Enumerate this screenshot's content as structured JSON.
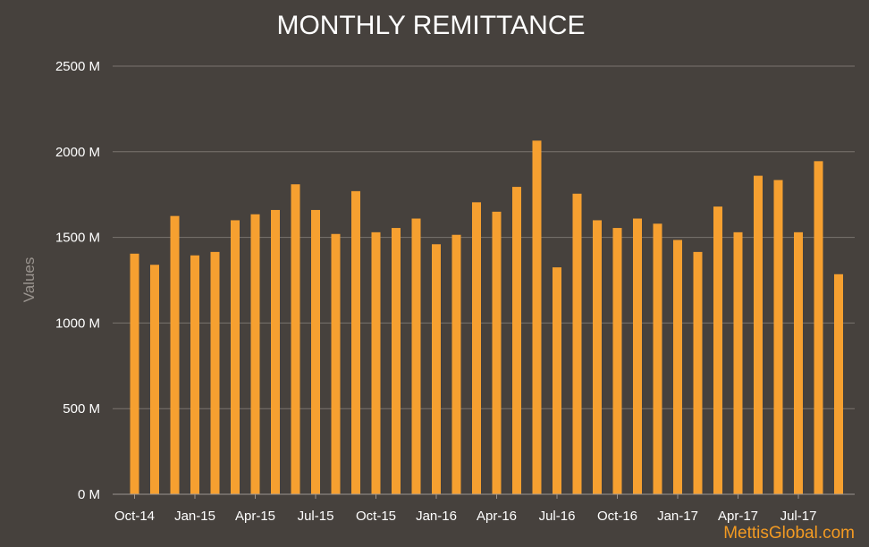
{
  "chart_data": {
    "type": "bar",
    "title": "MONTHLY REMITTANCE",
    "xlabel": "",
    "ylabel": "Values",
    "ylim": [
      0,
      2500
    ],
    "yticks": [
      0,
      500,
      1000,
      1500,
      2000,
      2500
    ],
    "ytick_labels": [
      "0 M",
      "500 M",
      "1000 M",
      "1500 M",
      "2000 M",
      "2500 M"
    ],
    "grid": true,
    "categories": [
      "Oct-14",
      "Nov-14",
      "Dec-14",
      "Jan-15",
      "Feb-15",
      "Mar-15",
      "Apr-15",
      "May-15",
      "Jun-15",
      "Jul-15",
      "Aug-15",
      "Sep-15",
      "Oct-15",
      "Nov-15",
      "Dec-15",
      "Jan-16",
      "Feb-16",
      "Mar-16",
      "Apr-16",
      "May-16",
      "Jun-16",
      "Jul-16",
      "Aug-16",
      "Sep-16",
      "Oct-16",
      "Nov-16",
      "Dec-16",
      "Jan-17",
      "Feb-17",
      "Mar-17",
      "Apr-17",
      "May-17",
      "Jun-17",
      "Jul-17",
      "Aug-17",
      "Sep-17"
    ],
    "x_tick_labels": [
      "Oct-14",
      "Jan-15",
      "Apr-15",
      "Jul-15",
      "Oct-15",
      "Jan-16",
      "Apr-16",
      "Jul-16",
      "Oct-16",
      "Jan-17",
      "Apr-17",
      "Jul-17"
    ],
    "series": [
      {
        "values": [
          1405,
          1340,
          1625,
          1395,
          1415,
          1600,
          1635,
          1660,
          1810,
          1660,
          1520,
          1770,
          1530,
          1555,
          1610,
          1460,
          1515,
          1705,
          1650,
          1795,
          2065,
          1325,
          1755,
          1600,
          1555,
          1610,
          1580,
          1485,
          1415,
          1680,
          1530,
          1860,
          1835,
          1530,
          1945,
          1285
        ],
        "color": "#f6a030"
      }
    ]
  },
  "watermark": "MettisGlobal.com"
}
